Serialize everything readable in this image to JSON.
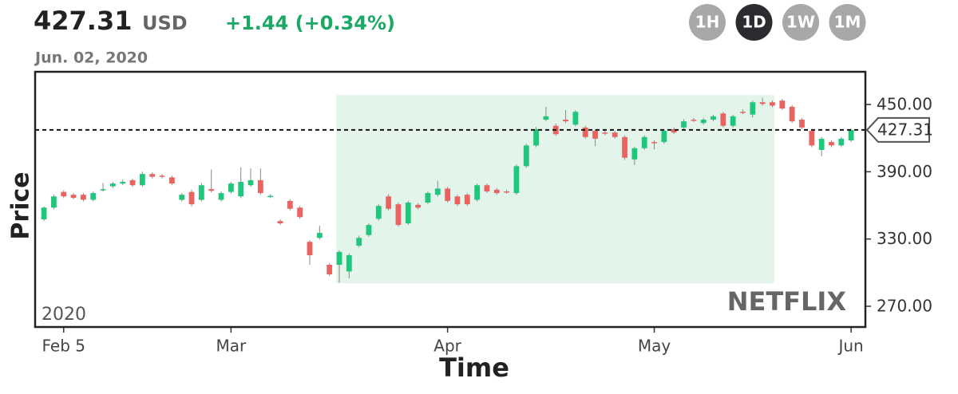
{
  "header": {
    "price": "427.31",
    "currency": "USD",
    "change": "+1.44 (+0.34%)",
    "date": "Jun. 02, 2020",
    "buttons": [
      "1H",
      "1D",
      "1W",
      "1M"
    ],
    "active_button": "1D"
  },
  "chart_data": {
    "type": "candlestick",
    "x_label": "Time",
    "y_label": "Price",
    "year_label": "2020",
    "watermark": "NETFLIX",
    "x": [
      0,
      1,
      2,
      3,
      4,
      5,
      6,
      7,
      8,
      9,
      10,
      11,
      12,
      13,
      14,
      15,
      16,
      17,
      18,
      19,
      20,
      21,
      22,
      23,
      24,
      25,
      26,
      27,
      28,
      29,
      30,
      31,
      32,
      33,
      34,
      35,
      36,
      37,
      38,
      39,
      40,
      41,
      42,
      43,
      44,
      45,
      46,
      47,
      48,
      49,
      50,
      51,
      52,
      53,
      54,
      55,
      56,
      57,
      58,
      59,
      60,
      61,
      62,
      63,
      64,
      65,
      66,
      67,
      68,
      69,
      70,
      71,
      72,
      73,
      74,
      75,
      76,
      77,
      78,
      79,
      80,
      81,
      82
    ],
    "open": [
      347.5,
      358,
      372,
      369.5,
      369.5,
      365,
      374,
      377,
      379.5,
      382.5,
      378,
      388,
      386.5,
      385,
      365,
      372,
      365,
      374.5,
      365,
      372,
      368,
      378,
      382.5,
      368,
      346,
      364,
      358,
      327.5,
      331,
      307,
      307,
      301,
      324,
      333.5,
      348,
      368,
      361,
      344,
      360.5,
      362.5,
      369.5,
      375,
      368,
      369.5,
      365,
      378,
      374,
      372.5,
      371,
      395,
      413.5,
      436.5,
      431,
      436.5,
      432,
      429.5,
      426.5,
      425,
      425,
      421,
      401,
      411,
      416.5,
      416.5,
      428,
      429.5,
      436.5,
      433.5,
      436.5,
      442,
      431,
      443.5,
      441,
      452,
      452,
      453.5,
      448,
      436.5,
      426.5,
      409.5,
      416.5,
      413.5,
      418
    ],
    "high": [
      359,
      369.5,
      373.5,
      371,
      371,
      372.5,
      380,
      381,
      383,
      384,
      390,
      389.5,
      388,
      386.5,
      371,
      374,
      380,
      392,
      372.5,
      381,
      394,
      393,
      393,
      370,
      347.5,
      365.5,
      359.5,
      329,
      342,
      308.5,
      320,
      317,
      333,
      344,
      361,
      370,
      362.5,
      364,
      362,
      372.5,
      382,
      376.5,
      369.5,
      371,
      379.5,
      379.5,
      375.5,
      374,
      396.5,
      415,
      430,
      448,
      433,
      445,
      445,
      431,
      428,
      426.5,
      426.5,
      422.5,
      412.5,
      422.5,
      418,
      428,
      429.5,
      437,
      438,
      438,
      441,
      443.5,
      441,
      445.5,
      453.5,
      456,
      453.5,
      455,
      449.5,
      438,
      428,
      421,
      418,
      421,
      428.5
    ],
    "low": [
      346,
      356.5,
      366.5,
      365.5,
      363.5,
      363.5,
      372.5,
      375.5,
      378,
      376.5,
      376.5,
      384,
      384,
      378,
      363.5,
      359,
      363.5,
      371.5,
      363.5,
      370.5,
      366.5,
      376.5,
      369.5,
      366.5,
      342.5,
      355.5,
      348,
      307,
      329.5,
      297,
      291,
      295,
      322.5,
      332,
      346.5,
      355.5,
      341,
      342.5,
      356.5,
      361,
      368,
      362.5,
      359.5,
      359.5,
      363.5,
      371,
      369.5,
      370.5,
      369.5,
      393.5,
      412,
      435,
      422,
      433.5,
      430.5,
      419.5,
      413,
      422.5,
      419.5,
      400.5,
      396,
      409.5,
      410,
      415,
      423.5,
      428,
      434.5,
      432,
      435,
      429.5,
      429.5,
      441.5,
      438.5,
      449,
      447.5,
      445,
      433.5,
      428,
      412,
      404,
      412,
      412,
      416.5
    ],
    "close": [
      358,
      368,
      368,
      366.7,
      365,
      371,
      374.5,
      379.5,
      381,
      378,
      388,
      385.5,
      385.5,
      379.5,
      369.5,
      361,
      378,
      373,
      371,
      379.5,
      381,
      382.5,
      371,
      368.5,
      344,
      357,
      349.5,
      315.5,
      335.5,
      298.5,
      318.5,
      315.5,
      331,
      342.5,
      359.5,
      357,
      342.5,
      362.5,
      358,
      371,
      375,
      364,
      361,
      361,
      378,
      372.5,
      371,
      372,
      395,
      413.5,
      428,
      439.5,
      423.5,
      435,
      443.5,
      421,
      419.5,
      424,
      421,
      402.5,
      411,
      421,
      416,
      426.5,
      425,
      435,
      436,
      436.5,
      439.5,
      431,
      439.5,
      443,
      452,
      450.5,
      449,
      446.5,
      435,
      429.5,
      413.5,
      419.5,
      413.5,
      419.5,
      427.31
    ],
    "up_color": "#1fc77c",
    "down_color": "#ea6360",
    "xlim": [
      -0.9,
      83.45
    ],
    "ylim": [
      251.5,
      479.2
    ],
    "xticks": [
      {
        "value": 2,
        "label": "Feb 5"
      },
      {
        "value": 19,
        "label": "Mar"
      },
      {
        "value": 41,
        "label": "Apr"
      },
      {
        "value": 62,
        "label": "May"
      },
      {
        "value": 82,
        "label": "Jun"
      }
    ],
    "yticks": [
      {
        "value": 270,
        "label": "270.00"
      },
      {
        "value": 330,
        "label": "330.00"
      },
      {
        "value": 390,
        "label": "390.00"
      },
      {
        "value": 450,
        "label": "450.00"
      }
    ],
    "highlight": {
      "xlim": [
        29.7,
        74.2
      ],
      "ylim": [
        290.6,
        458.5
      ],
      "color": "#e3f5ea"
    },
    "last_price": {
      "value": 427.31,
      "label": "427.31"
    }
  }
}
